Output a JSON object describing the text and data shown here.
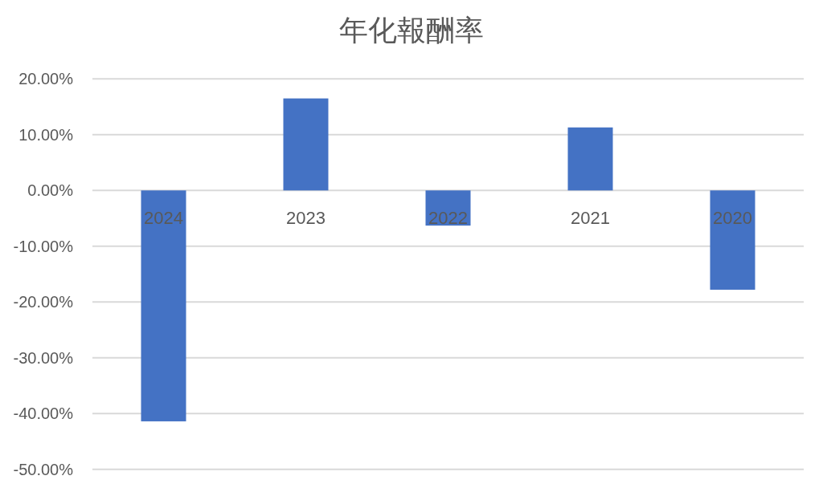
{
  "chart_data": {
    "type": "bar",
    "title": "年化報酬率",
    "categories": [
      "2024",
      "2023",
      "2022",
      "2021",
      "2020"
    ],
    "values": [
      -41.4,
      16.5,
      -6.3,
      11.3,
      -17.8
    ],
    "color": "#4472c4",
    "ylim": [
      -50,
      20
    ],
    "yticks": [
      {
        "value": -50,
        "label": "-50.00%"
      },
      {
        "value": -40,
        "label": "-40.00%"
      },
      {
        "value": -30,
        "label": "-30.00%"
      },
      {
        "value": -20,
        "label": "-20.00%"
      },
      {
        "value": -10,
        "label": "-10.00%"
      },
      {
        "value": 0,
        "label": "0.00%"
      },
      {
        "value": 10,
        "label": "10.00%"
      },
      {
        "value": 20,
        "label": "20.00%"
      }
    ],
    "grid": "y"
  }
}
